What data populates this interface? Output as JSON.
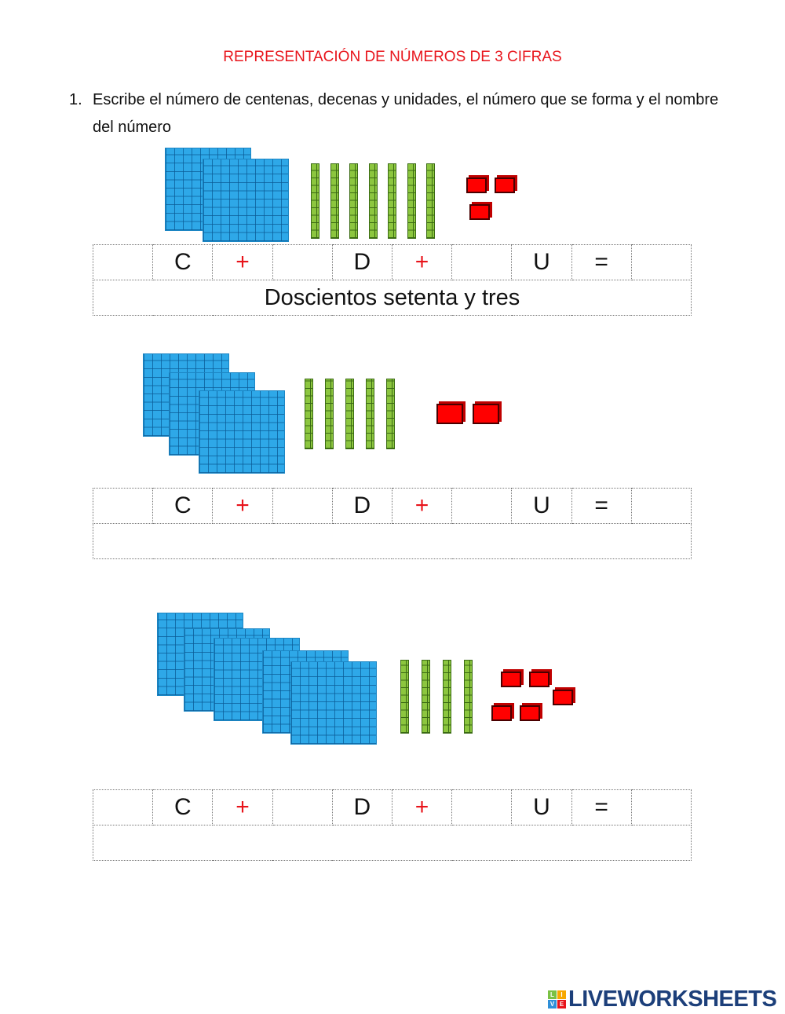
{
  "title": "REPRESENTACIÓN DE NÚMEROS DE 3 CIFRAS",
  "instruction": {
    "number": "1.",
    "text": "Escribe el número de centenas, decenas y unidades, el número que se forma y el nombre del número"
  },
  "labels": {
    "c": "C",
    "d": "D",
    "u": "U",
    "plus": "+",
    "equals": "="
  },
  "exercises": [
    {
      "hundreds": 2,
      "tens": 7,
      "units": 3,
      "name": "Doscientos setenta y tres"
    },
    {
      "hundreds": 3,
      "tens": 5,
      "units": 2,
      "name": ""
    },
    {
      "hundreds": 5,
      "tens": 4,
      "units": 5,
      "name": ""
    }
  ],
  "colors": {
    "title": "#e8141b",
    "hundreds": "#2ea8e8",
    "tens": "#8cc63f",
    "units": "#ff0000"
  },
  "logo": {
    "text": "LIVEWORKSHEETS",
    "badge": "LIVE"
  }
}
